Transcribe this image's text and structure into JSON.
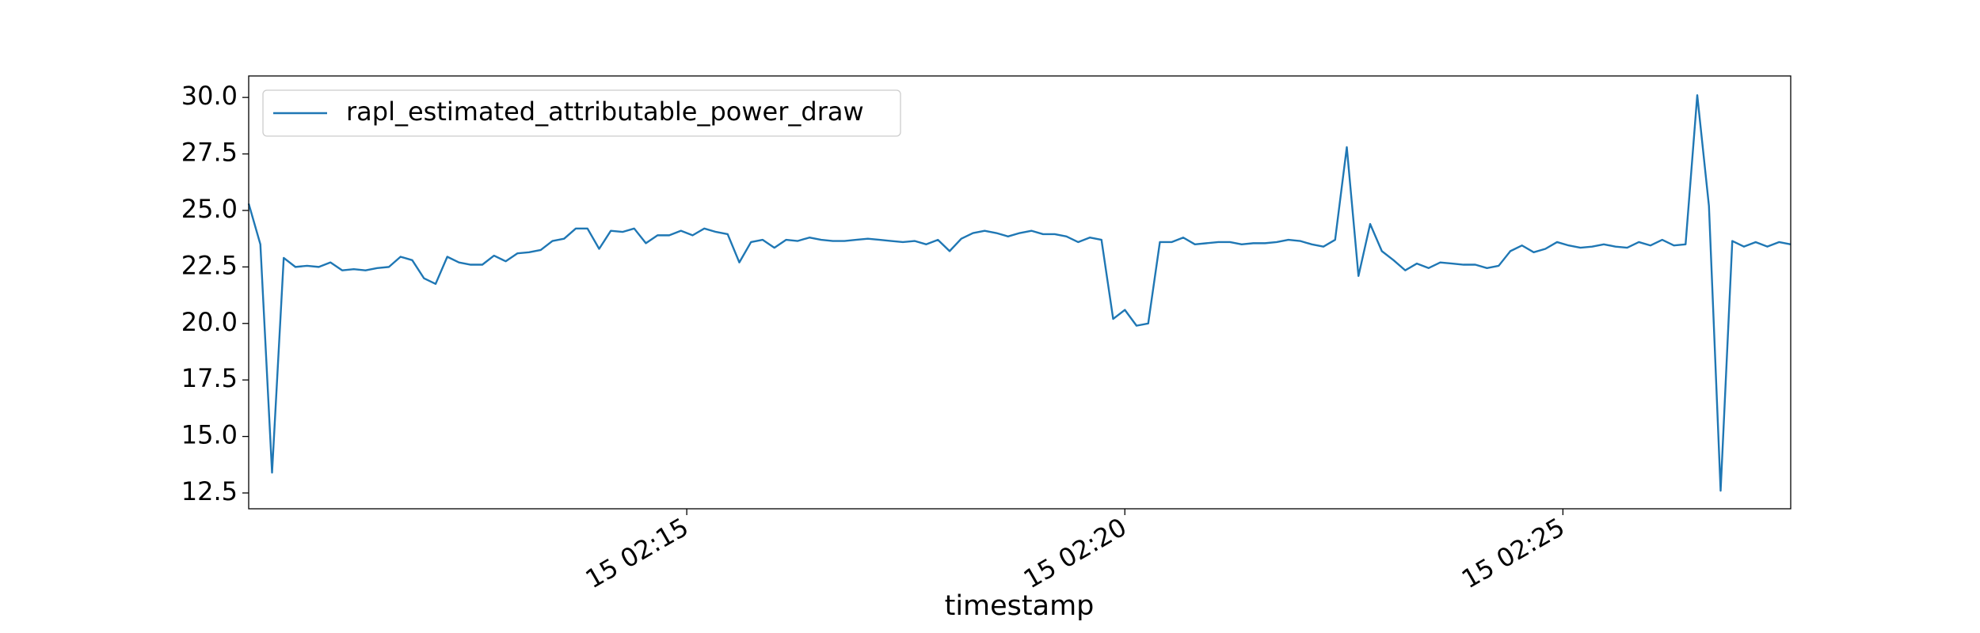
{
  "chart_data": {
    "type": "line",
    "xlabel": "timestamp",
    "x": [
      "15 02:10:00",
      "15 02:10:08",
      "15 02:10:16",
      "15 02:10:24",
      "15 02:10:32",
      "15 02:10:40",
      "15 02:10:48",
      "15 02:10:56",
      "15 02:11:04",
      "15 02:11:12",
      "15 02:11:20",
      "15 02:11:28",
      "15 02:11:36",
      "15 02:11:44",
      "15 02:11:52",
      "15 02:12:00",
      "15 02:12:08",
      "15 02:12:16",
      "15 02:12:24",
      "15 02:12:32",
      "15 02:12:40",
      "15 02:12:48",
      "15 02:12:56",
      "15 02:13:04",
      "15 02:13:12",
      "15 02:13:20",
      "15 02:13:28",
      "15 02:13:36",
      "15 02:13:44",
      "15 02:13:52",
      "15 02:14:00",
      "15 02:14:08",
      "15 02:14:16",
      "15 02:14:24",
      "15 02:14:32",
      "15 02:14:40",
      "15 02:14:48",
      "15 02:14:56",
      "15 02:15:04",
      "15 02:15:12",
      "15 02:15:20",
      "15 02:15:28",
      "15 02:15:36",
      "15 02:15:44",
      "15 02:15:52",
      "15 02:16:00",
      "15 02:16:08",
      "15 02:16:16",
      "15 02:16:24",
      "15 02:16:32",
      "15 02:16:40",
      "15 02:16:48",
      "15 02:16:56",
      "15 02:17:04",
      "15 02:17:12",
      "15 02:17:20",
      "15 02:17:28",
      "15 02:17:36",
      "15 02:17:44",
      "15 02:17:52",
      "15 02:18:00",
      "15 02:18:08",
      "15 02:18:16",
      "15 02:18:24",
      "15 02:18:32",
      "15 02:18:40",
      "15 02:18:48",
      "15 02:18:56",
      "15 02:19:04",
      "15 02:19:12",
      "15 02:19:20",
      "15 02:19:28",
      "15 02:19:36",
      "15 02:19:44",
      "15 02:19:52",
      "15 02:20:00",
      "15 02:20:08",
      "15 02:20:16",
      "15 02:20:24",
      "15 02:20:32",
      "15 02:20:40",
      "15 02:20:48",
      "15 02:20:56",
      "15 02:21:04",
      "15 02:21:12",
      "15 02:21:20",
      "15 02:21:28",
      "15 02:21:36",
      "15 02:21:44",
      "15 02:21:52",
      "15 02:22:00",
      "15 02:22:08",
      "15 02:22:16",
      "15 02:22:24",
      "15 02:22:32",
      "15 02:22:40",
      "15 02:22:48",
      "15 02:22:56",
      "15 02:23:04",
      "15 02:23:12",
      "15 02:23:20",
      "15 02:23:28",
      "15 02:23:36",
      "15 02:23:44",
      "15 02:23:52",
      "15 02:24:00",
      "15 02:24:08",
      "15 02:24:16",
      "15 02:24:24",
      "15 02:24:32",
      "15 02:24:40",
      "15 02:24:48",
      "15 02:24:56",
      "15 02:25:04",
      "15 02:25:12",
      "15 02:25:20",
      "15 02:25:28",
      "15 02:25:36",
      "15 02:25:44",
      "15 02:25:52",
      "15 02:26:00",
      "15 02:26:08",
      "15 02:26:16",
      "15 02:26:24",
      "15 02:26:32",
      "15 02:26:40",
      "15 02:26:48",
      "15 02:26:56",
      "15 02:27:04",
      "15 02:27:12",
      "15 02:27:20",
      "15 02:27:28",
      "15 02:27:36"
    ],
    "series": [
      {
        "name": "rapl_estimated_attributable_power_draw",
        "color": "#1f77b4",
        "values": [
          25.3,
          23.5,
          13.4,
          22.9,
          22.5,
          22.55,
          22.5,
          22.7,
          22.35,
          22.4,
          22.35,
          22.45,
          22.5,
          22.95,
          22.8,
          22.0,
          21.75,
          22.95,
          22.7,
          22.6,
          22.6,
          23.0,
          22.75,
          23.1,
          23.15,
          23.25,
          23.65,
          23.75,
          24.2,
          24.2,
          23.3,
          24.1,
          24.05,
          24.2,
          23.55,
          23.9,
          23.9,
          24.1,
          23.9,
          24.2,
          24.05,
          23.95,
          22.7,
          23.6,
          23.7,
          23.35,
          23.7,
          23.65,
          23.8,
          23.7,
          23.65,
          23.65,
          23.7,
          23.75,
          23.7,
          23.65,
          23.6,
          23.65,
          23.5,
          23.7,
          23.2,
          23.75,
          24.0,
          24.1,
          24.0,
          23.85,
          24.0,
          24.1,
          23.95,
          23.95,
          23.85,
          23.6,
          23.8,
          23.7,
          20.2,
          20.6,
          19.9,
          20.0,
          23.6,
          23.6,
          23.8,
          23.5,
          23.55,
          23.6,
          23.6,
          23.5,
          23.55,
          23.55,
          23.6,
          23.7,
          23.65,
          23.5,
          23.4,
          23.7,
          27.8,
          22.1,
          24.4,
          23.2,
          22.8,
          22.35,
          22.65,
          22.45,
          22.7,
          22.65,
          22.6,
          22.6,
          22.45,
          22.55,
          23.2,
          23.45,
          23.15,
          23.3,
          23.6,
          23.45,
          23.35,
          23.4,
          23.5,
          23.4,
          23.35,
          23.6,
          23.45,
          23.7,
          23.45,
          23.5,
          30.1,
          25.2,
          12.6,
          23.65,
          23.4,
          23.6,
          23.4,
          23.6,
          23.5
        ]
      }
    ],
    "xlim": [
      "15 02:10:00",
      "15 02:27:36"
    ],
    "xticks": [
      "15 02:15",
      "15 02:20",
      "15 02:25"
    ],
    "ylim": [
      11.8,
      30.95
    ],
    "yticks": [
      12.5,
      {
        "value": 15,
        "label": "15.0"
      },
      17.5,
      {
        "value": 20,
        "label": "20.0"
      },
      22.5,
      {
        "value": 25,
        "label": "25.0"
      },
      27.5,
      {
        "value": 30,
        "label": "30.0"
      }
    ],
    "legend": "upper left",
    "grid": false
  }
}
